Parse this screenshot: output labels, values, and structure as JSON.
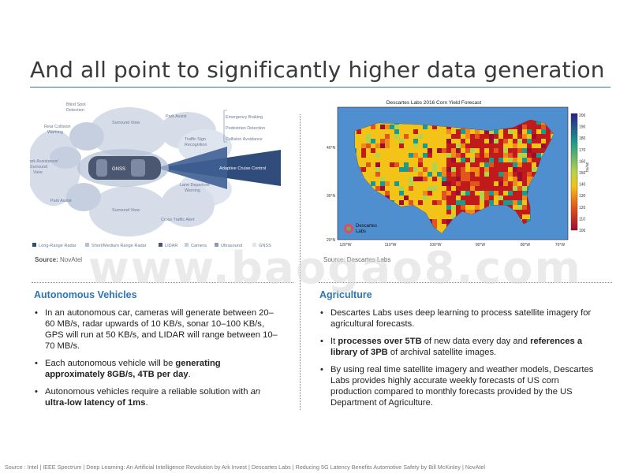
{
  "slide": {
    "title": "And all point to significantly higher data generation",
    "watermark": "www.baogao8.com",
    "footer": "Source : Intel | IEEE Spectrum | Deep Learning: An Artificial Intelligence Revolution by Ark Invest | Descartes Labs | Reducing 5G Latency Benefits Automotive Safety by Bill McKinley | NovAtel"
  },
  "left_figure": {
    "labels": {
      "blind_spot": "Blind Spot Detection",
      "rear_collision": "Rear Collision Warning",
      "surround_view_top": "Surround View",
      "park_assist_top": "Park Assist",
      "park_assist_side": "Park Assistance/ Surround View",
      "park_assist_bottom": "Park Assist",
      "surround_view_bottom": "Surround View",
      "traffic_sign": "Traffic Sign Recognition",
      "emergency_braking": "Emergency Braking",
      "pedestrian_detection": "Pedestrian Detection",
      "collision_avoidance": "Collision Avoidance",
      "adaptive_cruise": "Adaptive Cruise Control",
      "lane_departure": "Lane Departure Warning",
      "cross_traffic": "Cross Traffic Alert",
      "gnss_car": "GNSS"
    },
    "legend": [
      "Long-Range Radar",
      "Short/Medium Range Radar",
      "LIDAR",
      "Camera",
      "Ultrasound",
      "GNSS"
    ],
    "source_label": "Source:",
    "source_value": "NovAtel"
  },
  "right_figure": {
    "title": "Descartes Labs 2016 Corn Yield Forecast",
    "lat_ticks": [
      "40°N",
      "30°N",
      "20°N"
    ],
    "lon_ticks": [
      "120°W",
      "110°W",
      "100°W",
      "90°W",
      "80°W",
      "70°W"
    ],
    "colorbar_ticks": [
      "200",
      "190",
      "180",
      "170",
      "160",
      "150",
      "140",
      "130",
      "120",
      "110",
      "100"
    ],
    "colorbar_unit": "bu/ac",
    "logo_text": "Descartes Labs",
    "source": "Source: Descartes Labs",
    "colors": {
      "ocean": "#4f8fd0",
      "low": "#c01a1a",
      "mid": "#f3c318",
      "high": "#1e9a8a"
    }
  },
  "left_section": {
    "heading": "Autonomous Vehicles",
    "bullets": [
      [
        {
          "t": "In an autonomous car, cameras will generate between 20–60 MB/s, radar upwards of 10 KB/s, sonar 10–100 KB/s, GPS will run at 50 KB/s, and LIDAR will range between 10–70 MB/s."
        }
      ],
      [
        {
          "t": "Each autonomous vehicle will be "
        },
        {
          "t": "generating approximately 8GB/s, 4TB per day",
          "b": true
        },
        {
          "t": "."
        }
      ],
      [
        {
          "t": "Autonomous vehicles require a reliable solution with "
        },
        {
          "t": "an",
          "i": true
        },
        {
          "t": " "
        },
        {
          "t": "ultra-low latency of 1ms",
          "b": true
        },
        {
          "t": "."
        }
      ]
    ]
  },
  "right_section": {
    "heading": "Agriculture",
    "bullets": [
      [
        {
          "t": "Descartes Labs uses deep learning to process satellite imagery for agricultural forecasts."
        }
      ],
      [
        {
          "t": "It "
        },
        {
          "t": "processes over 5TB",
          "b": true
        },
        {
          "t": " of new data every day and "
        },
        {
          "t": "references a library of 3PB",
          "b": true
        },
        {
          "t": " of archival satellite images."
        }
      ],
      [
        {
          "t": "By using real time satellite imagery and weather models, Descartes Labs provides highly accurate weekly forecasts of US corn production compared to monthly forecasts provided by the US Department of Agriculture."
        }
      ]
    ]
  }
}
